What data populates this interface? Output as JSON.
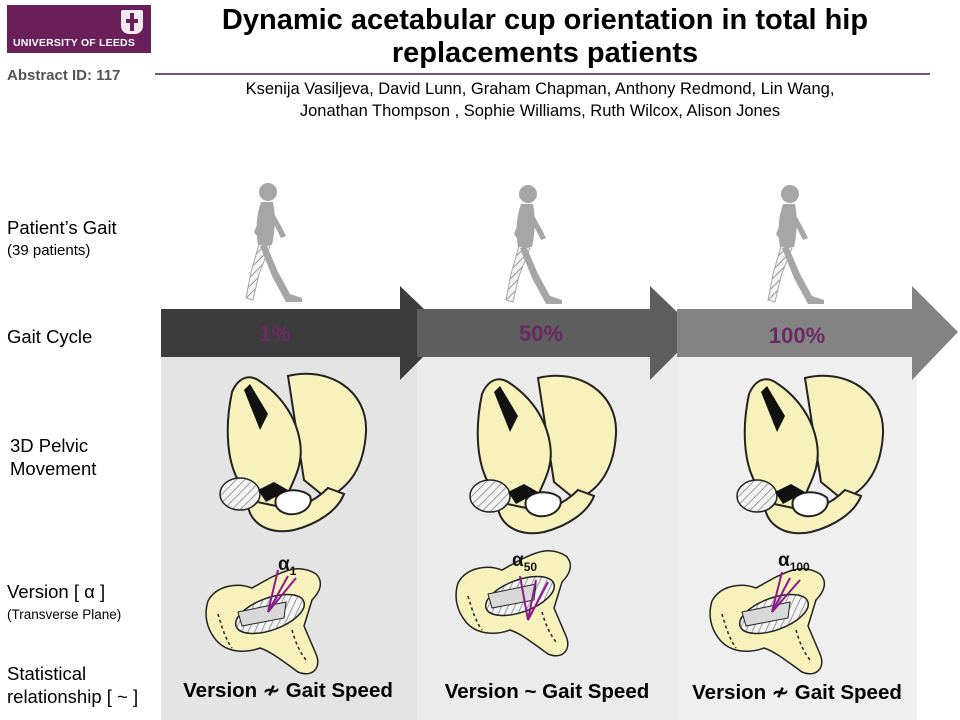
{
  "header": {
    "logo_text": "UNIVERSITY OF LEEDS",
    "abstract_id": "Abstract ID: 117",
    "title_line1": "Dynamic acetabular cup orientation in total hip",
    "title_line2": "replacements patients",
    "authors_line1": "Ksenija Vasiljeva, David Lunn, Graham Chapman, Anthony Redmond, Lin Wang,",
    "authors_line2": "Jonathan Thompson , Sophie Williams, Ruth Wilcox, Alison Jones"
  },
  "rows": {
    "gait": {
      "label": "Patient’s Gait",
      "sub": "(39 patients)"
    },
    "gait_cycle": {
      "label": "Gait Cycle"
    },
    "pelvic": {
      "line1": "3D Pelvic",
      "line2": "Movement"
    },
    "version": {
      "label": "Version [ α ]",
      "sub": "(Transverse Plane)"
    },
    "statistical": {
      "line1": "Statistical",
      "line2": "relationship [ ~ ]"
    }
  },
  "stages": [
    {
      "percent": "1%",
      "alpha": "α",
      "alpha_sub": "1",
      "formula_left": "Version",
      "formula_symbol": "≁",
      "formula_right": "Gait Speed"
    },
    {
      "percent": "50%",
      "alpha": "α",
      "alpha_sub": "50",
      "formula_left": "Version",
      "formula_symbol": "~",
      "formula_right": "Gait Speed"
    },
    {
      "percent": "100%",
      "alpha": "α",
      "alpha_sub": "100",
      "formula_left": "Version",
      "formula_symbol": "≁",
      "formula_right": "Gait Speed"
    }
  ],
  "colors": {
    "brand": "#6b1f5a",
    "percent_text": "#6b2a63",
    "arrow_1": "#3c3c3c",
    "arrow_2": "#5e5e5e",
    "arrow_3": "#838383",
    "bone": "#f7f1bb",
    "panel_bg": "#ececec",
    "angle_lines": "#8b1a8b"
  },
  "icons": [
    "walking-person-icon",
    "pelvis-icon",
    "acetabulum-section-icon"
  ]
}
